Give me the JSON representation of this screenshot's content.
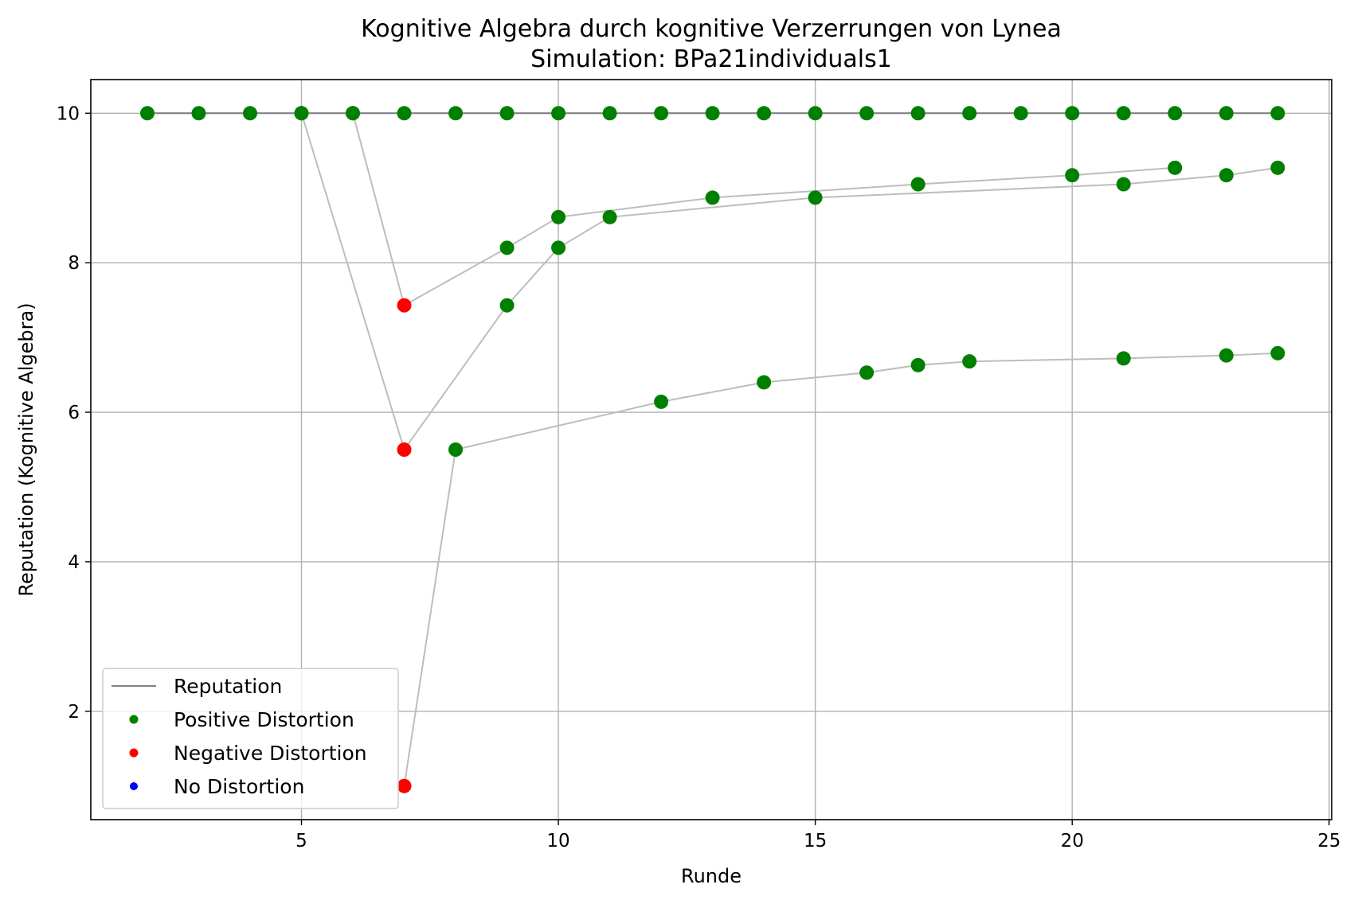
{
  "chart_data": {
    "type": "scatter",
    "title": "Kognitive Algebra durch kognitive Verzerrungen von Lynea",
    "subtitle": "Simulation: BPa21individuals1",
    "xlabel": "Runde",
    "ylabel": "Reputation (Kognitive Algebra)",
    "xlim": [
      0.9,
      25.05
    ],
    "ylim": [
      0.55,
      10.45
    ],
    "xticks": [
      5,
      10,
      15,
      20,
      25
    ],
    "yticks": [
      2,
      4,
      6,
      8,
      10
    ],
    "grid": true,
    "legend_position": "lower-left",
    "legend": [
      {
        "label": "Reputation",
        "kind": "line",
        "color": "#808080"
      },
      {
        "label": "Positive Distortion",
        "kind": "marker",
        "color": "#008000"
      },
      {
        "label": "Negative Distortion",
        "kind": "marker",
        "color": "#ff0000"
      },
      {
        "label": "No Distortion",
        "kind": "marker",
        "color": "#0000ff"
      }
    ],
    "colors": {
      "positive": "#008000",
      "negative": "#ff0000",
      "none": "#0000ff",
      "reputation_main": "#808080",
      "reputation_lines": "#bdbdbd"
    },
    "reputation_line": {
      "x": [
        2,
        24
      ],
      "y": [
        10,
        10
      ]
    },
    "series": [
      {
        "points": [
          [
            2,
            10,
            "pos"
          ],
          [
            3,
            10,
            "pos"
          ],
          [
            4,
            10,
            "pos"
          ],
          [
            5,
            10,
            "pos"
          ],
          [
            6,
            10,
            "pos"
          ],
          [
            7,
            10,
            "pos"
          ],
          [
            8,
            10,
            "pos"
          ],
          [
            9,
            10,
            "pos"
          ],
          [
            10,
            10,
            "pos"
          ],
          [
            11,
            10,
            "pos"
          ],
          [
            12,
            10,
            "pos"
          ],
          [
            13,
            10,
            "pos"
          ],
          [
            14,
            10,
            "pos"
          ],
          [
            15,
            10,
            "pos"
          ],
          [
            16,
            10,
            "pos"
          ],
          [
            17,
            10,
            "pos"
          ],
          [
            18,
            10,
            "pos"
          ],
          [
            19,
            10,
            "pos"
          ],
          [
            20,
            10,
            "pos"
          ],
          [
            21,
            10,
            "pos"
          ],
          [
            22,
            10,
            "pos"
          ],
          [
            23,
            10,
            "pos"
          ],
          [
            24,
            10,
            "pos"
          ]
        ]
      },
      {
        "points": [
          [
            6,
            10,
            "pos"
          ],
          [
            7,
            7.43,
            "neg"
          ],
          [
            9,
            8.2,
            "pos"
          ],
          [
            10,
            8.61,
            "pos"
          ],
          [
            13,
            8.87,
            "pos"
          ],
          [
            17,
            9.05,
            "pos"
          ],
          [
            20,
            9.17,
            "pos"
          ],
          [
            22,
            9.27,
            "pos"
          ]
        ]
      },
      {
        "points": [
          [
            5,
            10,
            "pos"
          ],
          [
            7,
            5.5,
            "neg"
          ],
          [
            9,
            7.43,
            "pos"
          ],
          [
            10,
            8.2,
            "pos"
          ],
          [
            11,
            8.61,
            "pos"
          ],
          [
            15,
            8.87,
            "pos"
          ],
          [
            21,
            9.05,
            "pos"
          ],
          [
            23,
            9.17,
            "pos"
          ],
          [
            24,
            9.27,
            "pos"
          ]
        ]
      },
      {
        "points": [
          [
            7,
            1.0,
            "neg"
          ],
          [
            8,
            5.5,
            "pos"
          ],
          [
            12,
            6.14,
            "pos"
          ],
          [
            14,
            6.4,
            "pos"
          ],
          [
            16,
            6.53,
            "pos"
          ],
          [
            17,
            6.63,
            "pos"
          ],
          [
            18,
            6.68,
            "pos"
          ],
          [
            21,
            6.72,
            "pos"
          ],
          [
            23,
            6.76,
            "pos"
          ],
          [
            24,
            6.79,
            "pos"
          ]
        ]
      }
    ]
  }
}
